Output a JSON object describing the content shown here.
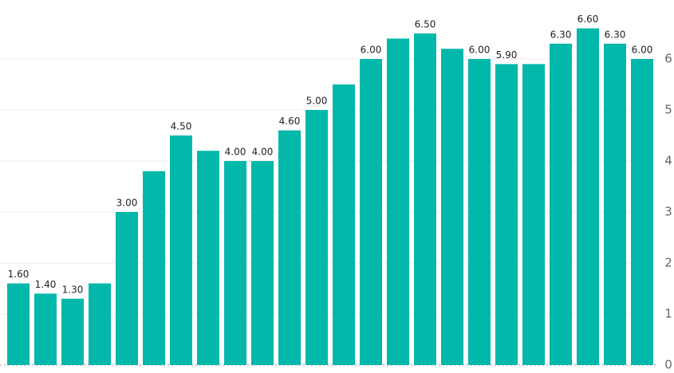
{
  "chart_data": {
    "type": "bar",
    "values": [
      1.6,
      1.4,
      1.3,
      1.6,
      3.0,
      3.8,
      4.5,
      4.2,
      4.0,
      4.0,
      4.6,
      5.0,
      5.5,
      6.0,
      6.4,
      6.5,
      6.2,
      6.0,
      5.9,
      5.9,
      6.3,
      6.6,
      6.3,
      6.0
    ],
    "value_labels": [
      "1.60",
      "1.40",
      "1.30",
      null,
      "3.00",
      null,
      "4.50",
      null,
      "4.00",
      "4.00",
      "4.60",
      "5.00",
      null,
      "6.00",
      null,
      "6.50",
      null,
      "6.00",
      "5.90",
      null,
      "6.30",
      "6.60",
      "6.30",
      "6.00"
    ],
    "color": "#01b8aa",
    "ylim": [
      0,
      7
    ],
    "yticks": [
      0,
      1,
      2,
      3,
      4,
      5,
      6
    ],
    "grid": true,
    "y_axis_side": "right"
  }
}
